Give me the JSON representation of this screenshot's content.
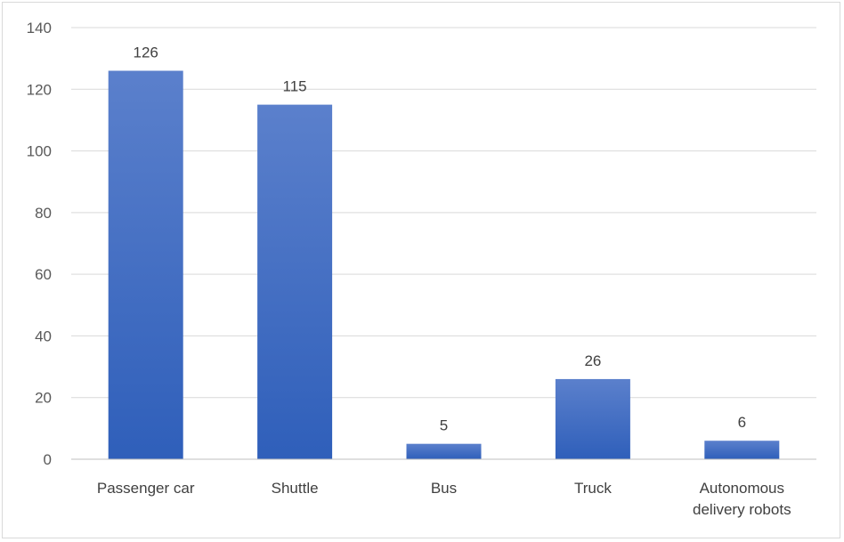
{
  "chart_data": {
    "type": "bar",
    "title": "",
    "xlabel": "",
    "ylabel": "",
    "categories": [
      [
        "Passenger car"
      ],
      [
        "Shuttle"
      ],
      [
        "Bus"
      ],
      [
        "Truck"
      ],
      [
        "Autonomous",
        "delivery robots"
      ]
    ],
    "values": [
      126,
      115,
      5,
      26,
      6
    ],
    "data_labels": [
      "126",
      "115",
      "5",
      "26",
      "6"
    ],
    "ylim": [
      0,
      140
    ],
    "yticks": [
      0,
      20,
      40,
      60,
      80,
      100,
      120,
      140
    ],
    "grid": true,
    "legend": "none",
    "colors": {
      "bar_top": "#5b80cc",
      "bar_bottom": "#2f5fba",
      "grid": "#d9d9d9",
      "axis": "#bfbfbf"
    }
  }
}
